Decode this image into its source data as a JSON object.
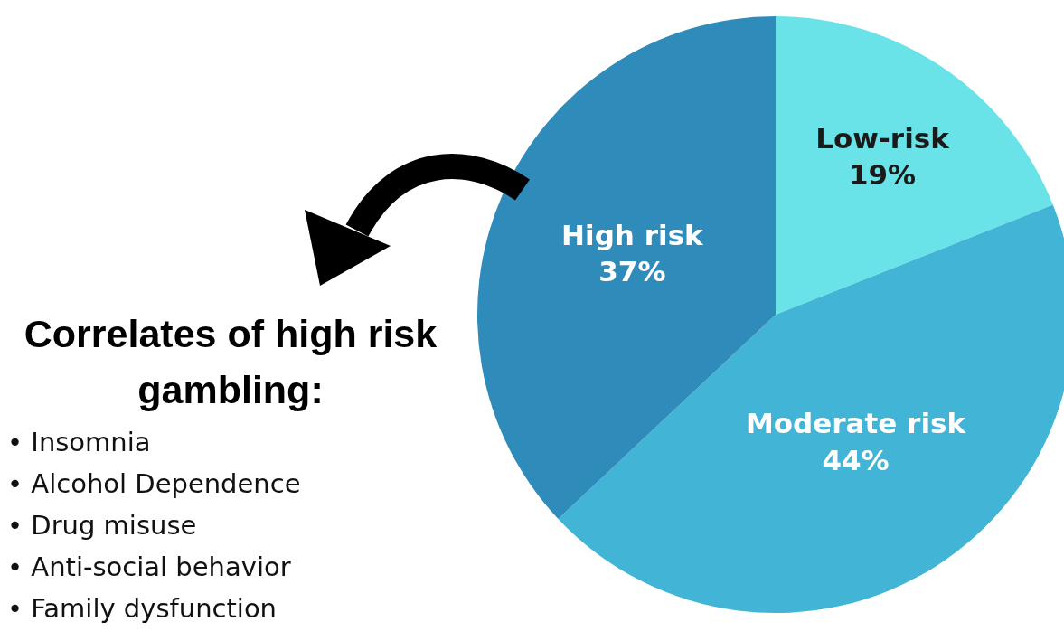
{
  "chart_data": {
    "type": "pie",
    "categories": [
      "Low-risk",
      "Moderate risk",
      "High risk"
    ],
    "values": [
      19,
      44,
      37
    ],
    "value_labels": [
      "19%",
      "44%",
      "37%"
    ],
    "colors": [
      "#6ae3e8",
      "#42b4d6",
      "#2e8bba"
    ],
    "annotations": [
      "Correlates of high risk gambling:",
      "• Insomnia",
      "• Alcohol Dependence",
      "• Drug misuse",
      "• Anti-social behavior",
      "• Family dysfunction"
    ]
  }
}
